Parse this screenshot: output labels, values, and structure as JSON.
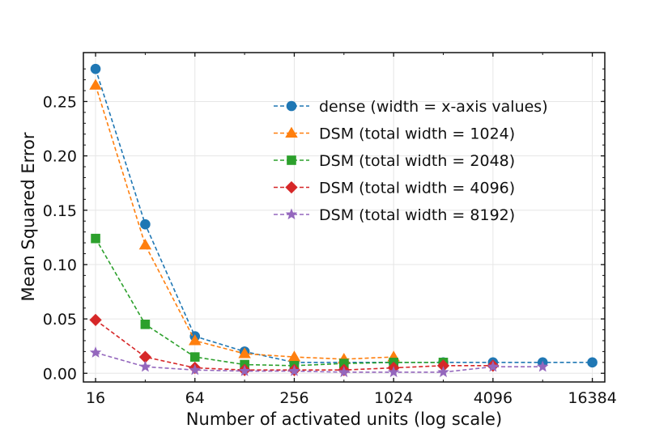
{
  "chart_data": {
    "type": "line",
    "title": "",
    "xlabel": "Number of activated units (log scale)",
    "ylabel": "Mean Squared Error",
    "x_scale": "log2",
    "xlim": [
      13.5,
      19500
    ],
    "ylim": [
      -0.008,
      0.295
    ],
    "x_ticks": [
      16,
      64,
      256,
      1024,
      4096,
      16384
    ],
    "x_tick_labels": [
      "16",
      "64",
      "256",
      "1024",
      "4096",
      "16384"
    ],
    "y_ticks": [
      0.0,
      0.05,
      0.1,
      0.15,
      0.2,
      0.25
    ],
    "y_tick_labels": [
      "0.00",
      "0.05",
      "0.10",
      "0.15",
      "0.20",
      "0.25"
    ],
    "grid": true,
    "legend_position": "upper-right",
    "line_style": "dashed",
    "series": [
      {
        "name": "dense (width = x-axis values)",
        "color": "#1f77b4",
        "marker": "circle",
        "x": [
          16,
          32,
          64,
          128,
          256,
          512,
          1024,
          2048,
          4096,
          8192,
          16384
        ],
        "y": [
          0.28,
          0.137,
          0.034,
          0.02,
          0.01,
          0.01,
          0.01,
          0.01,
          0.01,
          0.01,
          0.01
        ]
      },
      {
        "name": "DSM (total width = 1024)",
        "color": "#ff7f0e",
        "marker": "triangle",
        "x": [
          16,
          32,
          64,
          128,
          256,
          512,
          1024
        ],
        "y": [
          0.265,
          0.118,
          0.03,
          0.018,
          0.015,
          0.013,
          0.015
        ]
      },
      {
        "name": "DSM (total width = 2048)",
        "color": "#2ca02c",
        "marker": "square",
        "x": [
          16,
          32,
          64,
          128,
          256,
          512,
          1024,
          2048
        ],
        "y": [
          0.124,
          0.045,
          0.015,
          0.008,
          0.007,
          0.009,
          0.01,
          0.01
        ]
      },
      {
        "name": "DSM (total width = 4096)",
        "color": "#d62728",
        "marker": "diamond",
        "x": [
          16,
          32,
          64,
          128,
          256,
          512,
          1024,
          2048,
          4096
        ],
        "y": [
          0.049,
          0.015,
          0.005,
          0.003,
          0.003,
          0.003,
          0.005,
          0.007,
          0.007
        ]
      },
      {
        "name": "DSM (total width = 8192)",
        "color": "#9467bd",
        "marker": "star",
        "x": [
          16,
          32,
          64,
          128,
          256,
          512,
          1024,
          2048,
          4096,
          8192
        ],
        "y": [
          0.019,
          0.006,
          0.003,
          0.002,
          0.002,
          0.001,
          0.001,
          0.001,
          0.006,
          0.006
        ]
      }
    ]
  }
}
